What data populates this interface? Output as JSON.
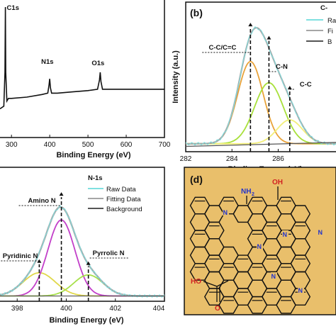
{
  "chart_data": [
    {
      "id": "a",
      "type": "line",
      "xlabel": "Binding Energy (eV)",
      "ylabel": "",
      "xlim": [
        270,
        700
      ],
      "xticks": [
        "300",
        "400",
        "500",
        "600",
        "700"
      ],
      "peak_labels": [
        {
          "text": "C1s",
          "x": 284
        },
        {
          "text": "N1s",
          "x": 400
        },
        {
          "text": "O1s",
          "x": 532
        }
      ],
      "x": [
        270,
        280,
        283,
        284,
        285,
        288,
        292,
        300,
        340,
        380,
        395,
        398,
        400,
        402,
        405,
        420,
        460,
        500,
        525,
        530,
        532,
        534,
        538,
        560,
        600,
        650,
        700
      ],
      "series": [
        {
          "values": [
            0.22,
            0.24,
            0.5,
            1.0,
            0.5,
            0.28,
            0.3,
            0.3,
            0.31,
            0.33,
            0.34,
            0.4,
            0.45,
            0.38,
            0.34,
            0.34,
            0.35,
            0.36,
            0.37,
            0.44,
            0.5,
            0.43,
            0.37,
            0.37,
            0.37,
            0.37,
            0.37
          ]
        }
      ]
    },
    {
      "id": "b",
      "type": "line",
      "panel_label": "(b)",
      "xlabel": "Binding Energy (eV)",
      "ylabel": "Intensity (a.u.)",
      "xlim": [
        282,
        288.5
      ],
      "xticks": [
        "282",
        "284",
        "286"
      ],
      "legend_title": "C-",
      "legend": [
        "Ra",
        "Fi",
        "B"
      ],
      "peaks": [
        {
          "label": "C-C/C=C",
          "center": 284.8,
          "amp": 0.62,
          "width": 0.55,
          "color": "#e8a33a"
        },
        {
          "label": "C-N",
          "center": 285.6,
          "amp": 0.46,
          "width": 0.62,
          "color": "#a8e03a"
        },
        {
          "label": "C-C",
          "center": 286.5,
          "amp": 0.18,
          "width": 0.55,
          "color": "#f3ef7a"
        }
      ],
      "baseline": 0.06
    },
    {
      "id": "c",
      "type": "line",
      "panel_title": "N-1s",
      "xlabel": "Binding Energy (eV)",
      "ylabel": "",
      "xlim": [
        397.3,
        404
      ],
      "xticks": [
        "398",
        "400",
        "402",
        "404"
      ],
      "legend": [
        "Raw Data",
        "Fitting Data",
        "Background"
      ],
      "peaks": [
        {
          "label": "Pyridinic N",
          "center": 398.9,
          "amp": 0.22,
          "width": 0.65,
          "color": "#e0d84a"
        },
        {
          "label": "Amino N",
          "center": 399.8,
          "amp": 0.72,
          "width": 0.55,
          "color": "#c23fc9"
        },
        {
          "label": "Pyrrolic N",
          "center": 400.9,
          "amp": 0.2,
          "width": 0.6,
          "color": "#a7e04a"
        }
      ],
      "baseline": 0.05
    }
  ],
  "panel_d": {
    "label": "(d)",
    "background": "#e9bf6b",
    "groups": [
      {
        "text": "NH",
        "sub": "2",
        "color": "#2233cc"
      },
      {
        "text": "OH",
        "color": "#d22222"
      },
      {
        "text": "HO",
        "color": "#d22222"
      },
      {
        "text": "O",
        "color": "#d22222"
      }
    ],
    "nitrogen_labels": [
      "N",
      "N",
      "N",
      "N",
      "N",
      "N"
    ]
  }
}
